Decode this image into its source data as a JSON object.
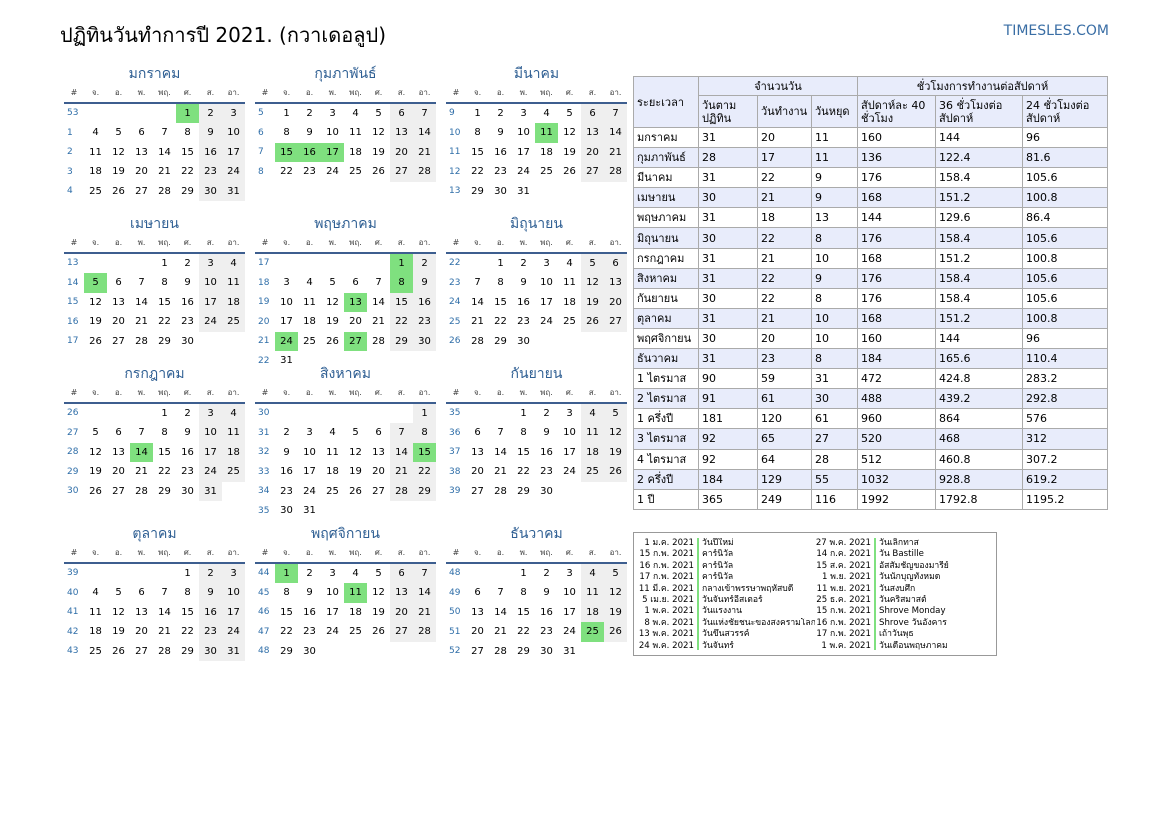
{
  "title": "ปฏิทินวันทำการปี 2021. (กวาเดอลูป)",
  "site": "TIMESLES.COM",
  "colors": {
    "accent": "#3d5e8f",
    "holiday": "#7fe07f",
    "weekend": "#efefef",
    "table_header": "#e8ecfb"
  },
  "weekday_header": [
    "#",
    "จ.",
    "อ.",
    "พ.",
    "พฤ.",
    "ศ.",
    "ส.",
    "อา."
  ],
  "months": [
    {
      "name": "มกราคม",
      "weeks": [
        53,
        1,
        2,
        3,
        4
      ],
      "start": 4,
      "days": 31,
      "holidays": [
        1
      ]
    },
    {
      "name": "กุมภาพันธ์",
      "weeks": [
        5,
        6,
        7,
        8
      ],
      "start": 0,
      "days": 28,
      "holidays": [
        15,
        16,
        17
      ]
    },
    {
      "name": "มีนาคม",
      "weeks": [
        9,
        10,
        11,
        12,
        13
      ],
      "start": 0,
      "days": 31,
      "holidays": [
        11
      ]
    },
    {
      "name": "เมษายน",
      "weeks": [
        13,
        14,
        15,
        16,
        17
      ],
      "start": 3,
      "days": 30,
      "holidays": [
        5
      ]
    },
    {
      "name": "พฤษภาคม",
      "weeks": [
        17,
        18,
        19,
        20,
        21,
        22
      ],
      "start": 5,
      "days": 31,
      "holidays": [
        1,
        8,
        13,
        24,
        27
      ]
    },
    {
      "name": "มิถุนายน",
      "weeks": [
        22,
        23,
        24,
        25,
        26
      ],
      "start": 1,
      "days": 30,
      "holidays": []
    },
    {
      "name": "กรกฎาคม",
      "weeks": [
        26,
        27,
        28,
        29,
        30
      ],
      "start": 3,
      "days": 31,
      "holidays": [
        14
      ]
    },
    {
      "name": "สิงหาคม",
      "weeks": [
        30,
        31,
        32,
        33,
        34,
        35
      ],
      "start": 6,
      "days": 31,
      "holidays": [
        15
      ]
    },
    {
      "name": "กันยายน",
      "weeks": [
        35,
        36,
        37,
        38,
        39
      ],
      "start": 2,
      "days": 30,
      "holidays": []
    },
    {
      "name": "ตุลาคม",
      "weeks": [
        39,
        40,
        41,
        42,
        43
      ],
      "start": 4,
      "days": 31,
      "holidays": []
    },
    {
      "name": "พฤศจิกายน",
      "weeks": [
        44,
        45,
        46,
        47,
        48
      ],
      "start": 0,
      "days": 30,
      "holidays": [
        1,
        11
      ]
    },
    {
      "name": "ธันวาคม",
      "weeks": [
        48,
        49,
        50,
        51,
        52
      ],
      "start": 2,
      "days": 31,
      "holidays": [
        25
      ]
    }
  ],
  "summary": {
    "period_label": "ระยะเวลา",
    "days_group": "จำนวนวัน",
    "hours_group": "ชั่วโมงการทำงานต่อสัปดาห์",
    "columns": [
      "วันตามปฏิทิน",
      "วันทำงาน",
      "วันหยุด",
      "สัปดาห์ละ 40 ชั่วโมง",
      "36 ชั่วโมงต่อสัปดาห์",
      "24 ชั่วโมงต่อสัปดาห์"
    ],
    "rows": [
      [
        "มกราคม",
        "31",
        "20",
        "11",
        "160",
        "144",
        "96"
      ],
      [
        "กุมภาพันธ์",
        "28",
        "17",
        "11",
        "136",
        "122.4",
        "81.6"
      ],
      [
        "มีนาคม",
        "31",
        "22",
        "9",
        "176",
        "158.4",
        "105.6"
      ],
      [
        "เมษายน",
        "30",
        "21",
        "9",
        "168",
        "151.2",
        "100.8"
      ],
      [
        "พฤษภาคม",
        "31",
        "18",
        "13",
        "144",
        "129.6",
        "86.4"
      ],
      [
        "มิถุนายน",
        "30",
        "22",
        "8",
        "176",
        "158.4",
        "105.6"
      ],
      [
        "กรกฎาคม",
        "31",
        "21",
        "10",
        "168",
        "151.2",
        "100.8"
      ],
      [
        "สิงหาคม",
        "31",
        "22",
        "9",
        "176",
        "158.4",
        "105.6"
      ],
      [
        "กันยายน",
        "30",
        "22",
        "8",
        "176",
        "158.4",
        "105.6"
      ],
      [
        "ตุลาคม",
        "31",
        "21",
        "10",
        "168",
        "151.2",
        "100.8"
      ],
      [
        "พฤศจิกายน",
        "30",
        "20",
        "10",
        "160",
        "144",
        "96"
      ],
      [
        "ธันวาคม",
        "31",
        "23",
        "8",
        "184",
        "165.6",
        "110.4"
      ],
      [
        "1 ไตรมาส",
        "90",
        "59",
        "31",
        "472",
        "424.8",
        "283.2"
      ],
      [
        "2 ไตรมาส",
        "91",
        "61",
        "30",
        "488",
        "439.2",
        "292.8"
      ],
      [
        "1 ครึ่งปี",
        "181",
        "120",
        "61",
        "960",
        "864",
        "576"
      ],
      [
        "3 ไตรมาส",
        "92",
        "65",
        "27",
        "520",
        "468",
        "312"
      ],
      [
        "4 ไตรมาส",
        "92",
        "64",
        "28",
        "512",
        "460.8",
        "307.2"
      ],
      [
        "2 ครึ่งปี",
        "184",
        "129",
        "55",
        "1032",
        "928.8",
        "619.2"
      ],
      [
        "1 ปี",
        "365",
        "249",
        "116",
        "1992",
        "1792.8",
        "1195.2"
      ]
    ]
  },
  "holidays_list": {
    "left": [
      [
        "1 ม.ค. 2021",
        "วันปีใหม่"
      ],
      [
        "15 ก.พ. 2021",
        "คาร์นิวัล"
      ],
      [
        "16 ก.พ. 2021",
        "คาร์นิวัล"
      ],
      [
        "17 ก.พ. 2021",
        "คาร์นิวัล"
      ],
      [
        "11 มี.ค. 2021",
        "กลางเข้าพรรษาพฤหัสบดี"
      ],
      [
        "5 เม.ย. 2021",
        "วันจันทร์อีสเตอร์"
      ],
      [
        "1 พ.ค. 2021",
        "วันแรงงาน"
      ],
      [
        "8 พ.ค. 2021",
        "วันแห่งชัยชนะของสงครามโลกครั้งที่สอง"
      ],
      [
        "13 พ.ค. 2021",
        "วันขึ้นสวรรค์"
      ],
      [
        "24 พ.ค. 2021",
        "วันจันทร์"
      ]
    ],
    "right": [
      [
        "27 พ.ค. 2021",
        "วันเลิกทาส"
      ],
      [
        "14 ก.ค. 2021",
        "วัน Bastille"
      ],
      [
        "15 ส.ค. 2021",
        "อัสสัมชัญของมารีย์"
      ],
      [
        "1 พ.ย. 2021",
        "วันนักบุญทั้งหมด"
      ],
      [
        "11 พ.ย. 2021",
        "วันสงบศึก"
      ],
      [
        "25 ธ.ค. 2021",
        "วันคริสมาสต์"
      ],
      [
        "15 ก.พ. 2021",
        "Shrove Monday"
      ],
      [
        "16 ก.พ. 2021",
        "Shrove วันอังคาร"
      ],
      [
        "17 ก.พ. 2021",
        "เถ้าวันพุธ"
      ],
      [
        "1 พ.ค. 2021",
        "วันเดือนพฤษภาคม"
      ]
    ]
  }
}
